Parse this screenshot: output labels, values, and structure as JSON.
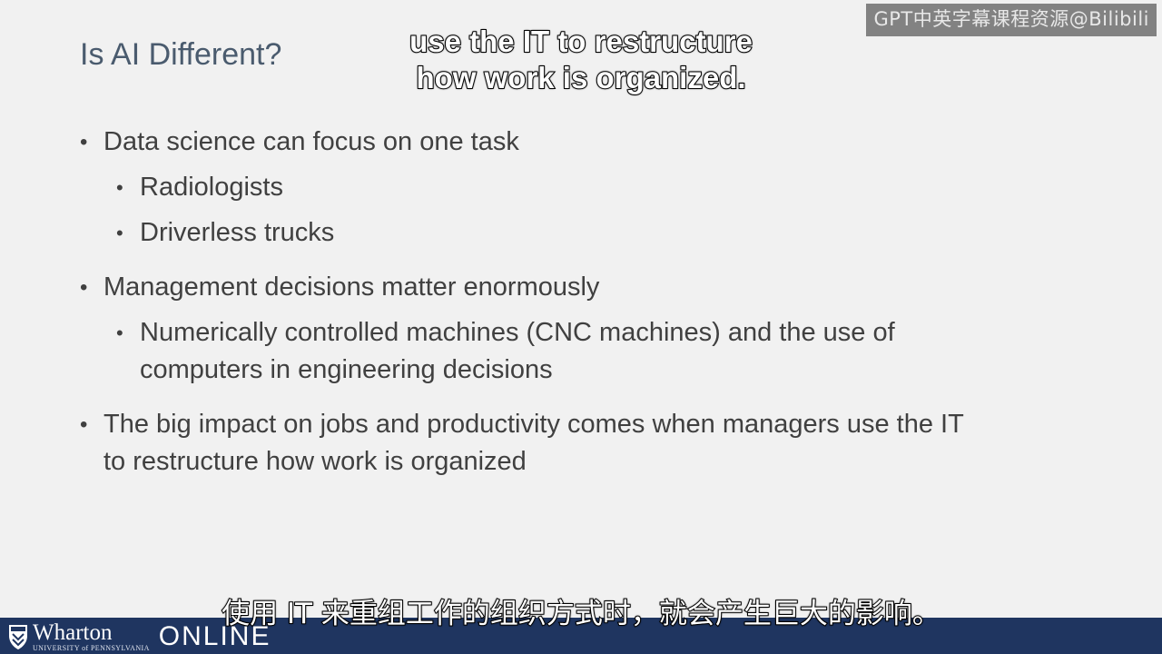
{
  "watermark": "GPT中英字幕课程资源@Bilibili",
  "slide": {
    "title": "Is AI Different?",
    "bullets": [
      {
        "text": "Data science can focus on one task"
      },
      {
        "text": "Radiologists"
      },
      {
        "text": "Driverless trucks"
      },
      {
        "text": "Management decisions matter enormously"
      },
      {
        "text_line1": "Numerically controlled machines (CNC machines) and the use of",
        "text_line2": "computers in engineering decisions"
      },
      {
        "text_line1": "The big impact on jobs and productivity comes when managers use the IT",
        "text_line2": "to restructure how work is organized"
      }
    ]
  },
  "subtitles": {
    "english_line1": "use the IT to restructure",
    "english_line2": "how work is organized.",
    "chinese": "使用 IT 来重组工作的组织方式时，就会产生巨大的影响。"
  },
  "footer": {
    "brand": "Wharton",
    "university": "UNIVERSITY of PENNSYLVANIA",
    "online": "ONLINE",
    "colors": {
      "bar": "#1f3560",
      "text": "#ffffff"
    }
  }
}
